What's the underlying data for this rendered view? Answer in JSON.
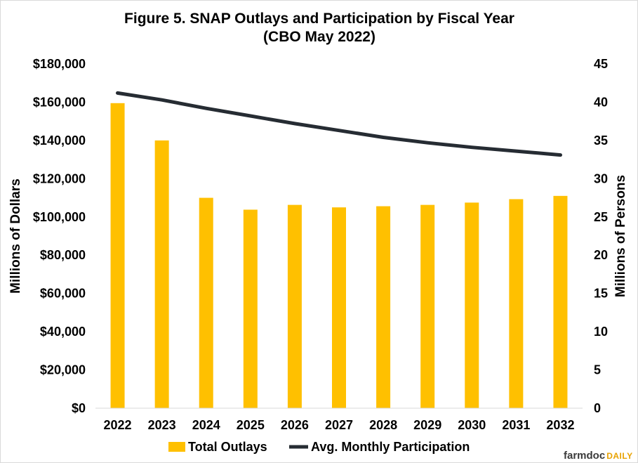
{
  "chart_data": {
    "type": "bar",
    "title": "Figure 5. SNAP Outlays and Participation by Fiscal Year",
    "subtitle": "(CBO May 2022)",
    "categories": [
      "2022",
      "2023",
      "2024",
      "2025",
      "2026",
      "2027",
      "2028",
      "2029",
      "2030",
      "2031",
      "2032"
    ],
    "series": [
      {
        "name": "Total Outlays",
        "type": "bar",
        "axis": "left",
        "color": "#FFC000",
        "values": [
          159500,
          140000,
          110000,
          103800,
          106300,
          105000,
          105600,
          106300,
          107500,
          109300,
          111000
        ]
      },
      {
        "name": "Avg. Monthly Participation",
        "type": "line",
        "axis": "right",
        "color": "#262C33",
        "values": [
          41.2,
          40.3,
          39.2,
          38.2,
          37.2,
          36.3,
          35.4,
          34.7,
          34.1,
          33.6,
          33.1
        ]
      }
    ],
    "ylabel": "Millions of Dollars",
    "y2label": "Millions of Persons",
    "ylim": [
      0,
      180000
    ],
    "y2lim": [
      0,
      45
    ],
    "yticks": [
      "$0",
      "$20,000",
      "$40,000",
      "$60,000",
      "$80,000",
      "$100,000",
      "$120,000",
      "$140,000",
      "$160,000",
      "$180,000"
    ],
    "y2ticks": [
      "0",
      "5",
      "10",
      "15",
      "20",
      "25",
      "30",
      "35",
      "40",
      "45"
    ],
    "grid": false,
    "legend": "bottom"
  },
  "branding": {
    "part1": "farmdoc",
    "part2": "DAILY"
  }
}
